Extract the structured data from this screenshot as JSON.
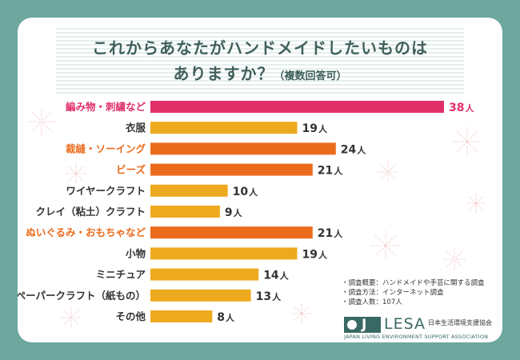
{
  "title": {
    "line1": "これからあなたがハンドメイドしたいものは",
    "line2": "ありますか？",
    "note": "（複数回答可）"
  },
  "colors": {
    "frame": "#6fa79f",
    "bar_top": "#e0306a",
    "bar_highlight": "#eb6b1d",
    "bar_normal": "#eeaa1e",
    "label_normal": "#333333"
  },
  "chart_data": {
    "type": "bar",
    "orientation": "horizontal",
    "unit": "人",
    "categories": [
      "編み物・刺繍など",
      "衣服",
      "裁縫・ソーイング",
      "ビーズ",
      "ワイヤークラフト",
      "クレイ（粘土）クラフト",
      "ぬいぐるみ・おもちゃなど",
      "小物",
      "ミニチュア",
      "ペーパークラフト（紙もの）",
      "その他"
    ],
    "values": [
      38,
      19,
      24,
      21,
      10,
      9,
      21,
      19,
      14,
      13,
      8
    ],
    "highlight": [
      "top",
      "normal",
      "highlight",
      "highlight",
      "normal",
      "normal",
      "highlight",
      "normal",
      "normal",
      "normal",
      "normal"
    ],
    "xlim": [
      0,
      38
    ]
  },
  "notes": [
    "・調査概要：ハンドメイドや手芸に関する調査",
    "・調査方法：インターネット調査",
    "・調査人数：107人"
  ],
  "logo": {
    "mark": "J",
    "name": "LESA",
    "jp": "日本生活環境支援協会",
    "en": "JAPAN LIVING ENVIRONMENT SUPPORT ASSOCIATION"
  }
}
